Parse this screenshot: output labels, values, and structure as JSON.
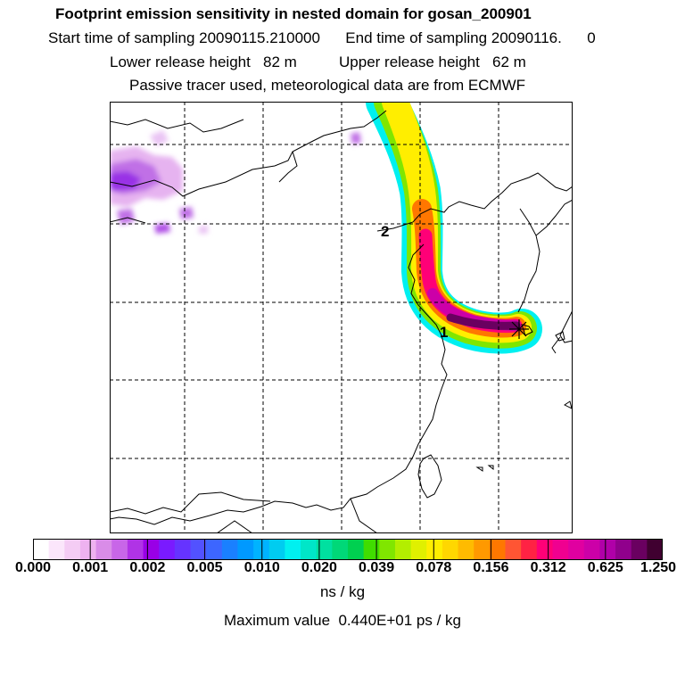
{
  "header": {
    "title": "Footprint emission sensitivity in nested domain for gosan_200901",
    "sampling_line": "Start time of sampling 20090115.210000      End time of sampling 20090116.      0",
    "release_line": "Lower release height   82 m          Upper release height   62 m",
    "tracer_line": "Passive tracer used, meteorological data are from ECMWF"
  },
  "map": {
    "markers": [
      {
        "label": "1"
      },
      {
        "label": "2"
      }
    ],
    "receptor_symbol": "star-cross-icon"
  },
  "colorbar": {
    "tick_labels": [
      "0.000",
      "0.001",
      "0.002",
      "0.005",
      "0.010",
      "0.020",
      "0.039",
      "0.078",
      "0.156",
      "0.312",
      "0.625",
      "1.250"
    ],
    "colors": [
      "#ffffff",
      "#fbe6fb",
      "#f4ccf4",
      "#eeb2f0",
      "#d98ce8",
      "#c866e8",
      "#b033e6",
      "#9900e6",
      "#7a1aff",
      "#6633ff",
      "#5252ff",
      "#3d66ff",
      "#1a80ff",
      "#0099ff",
      "#00b3ff",
      "#00ccf0",
      "#00f0f0",
      "#00e6c8",
      "#00e0a0",
      "#00d878",
      "#00d050",
      "#40dd00",
      "#80e600",
      "#b3ee00",
      "#e0f000",
      "#ffee00",
      "#ffd700",
      "#ffbb00",
      "#ff9900",
      "#ff7700",
      "#ff5533",
      "#ff2244",
      "#ff0077",
      "#f00090",
      "#e000a0",
      "#cc00a8",
      "#b000a8",
      "#90008c",
      "#6a0060",
      "#400030"
    ],
    "unit": "ns / kg"
  },
  "max_value": "Maximum value  0.440E+01 ps / kg"
}
